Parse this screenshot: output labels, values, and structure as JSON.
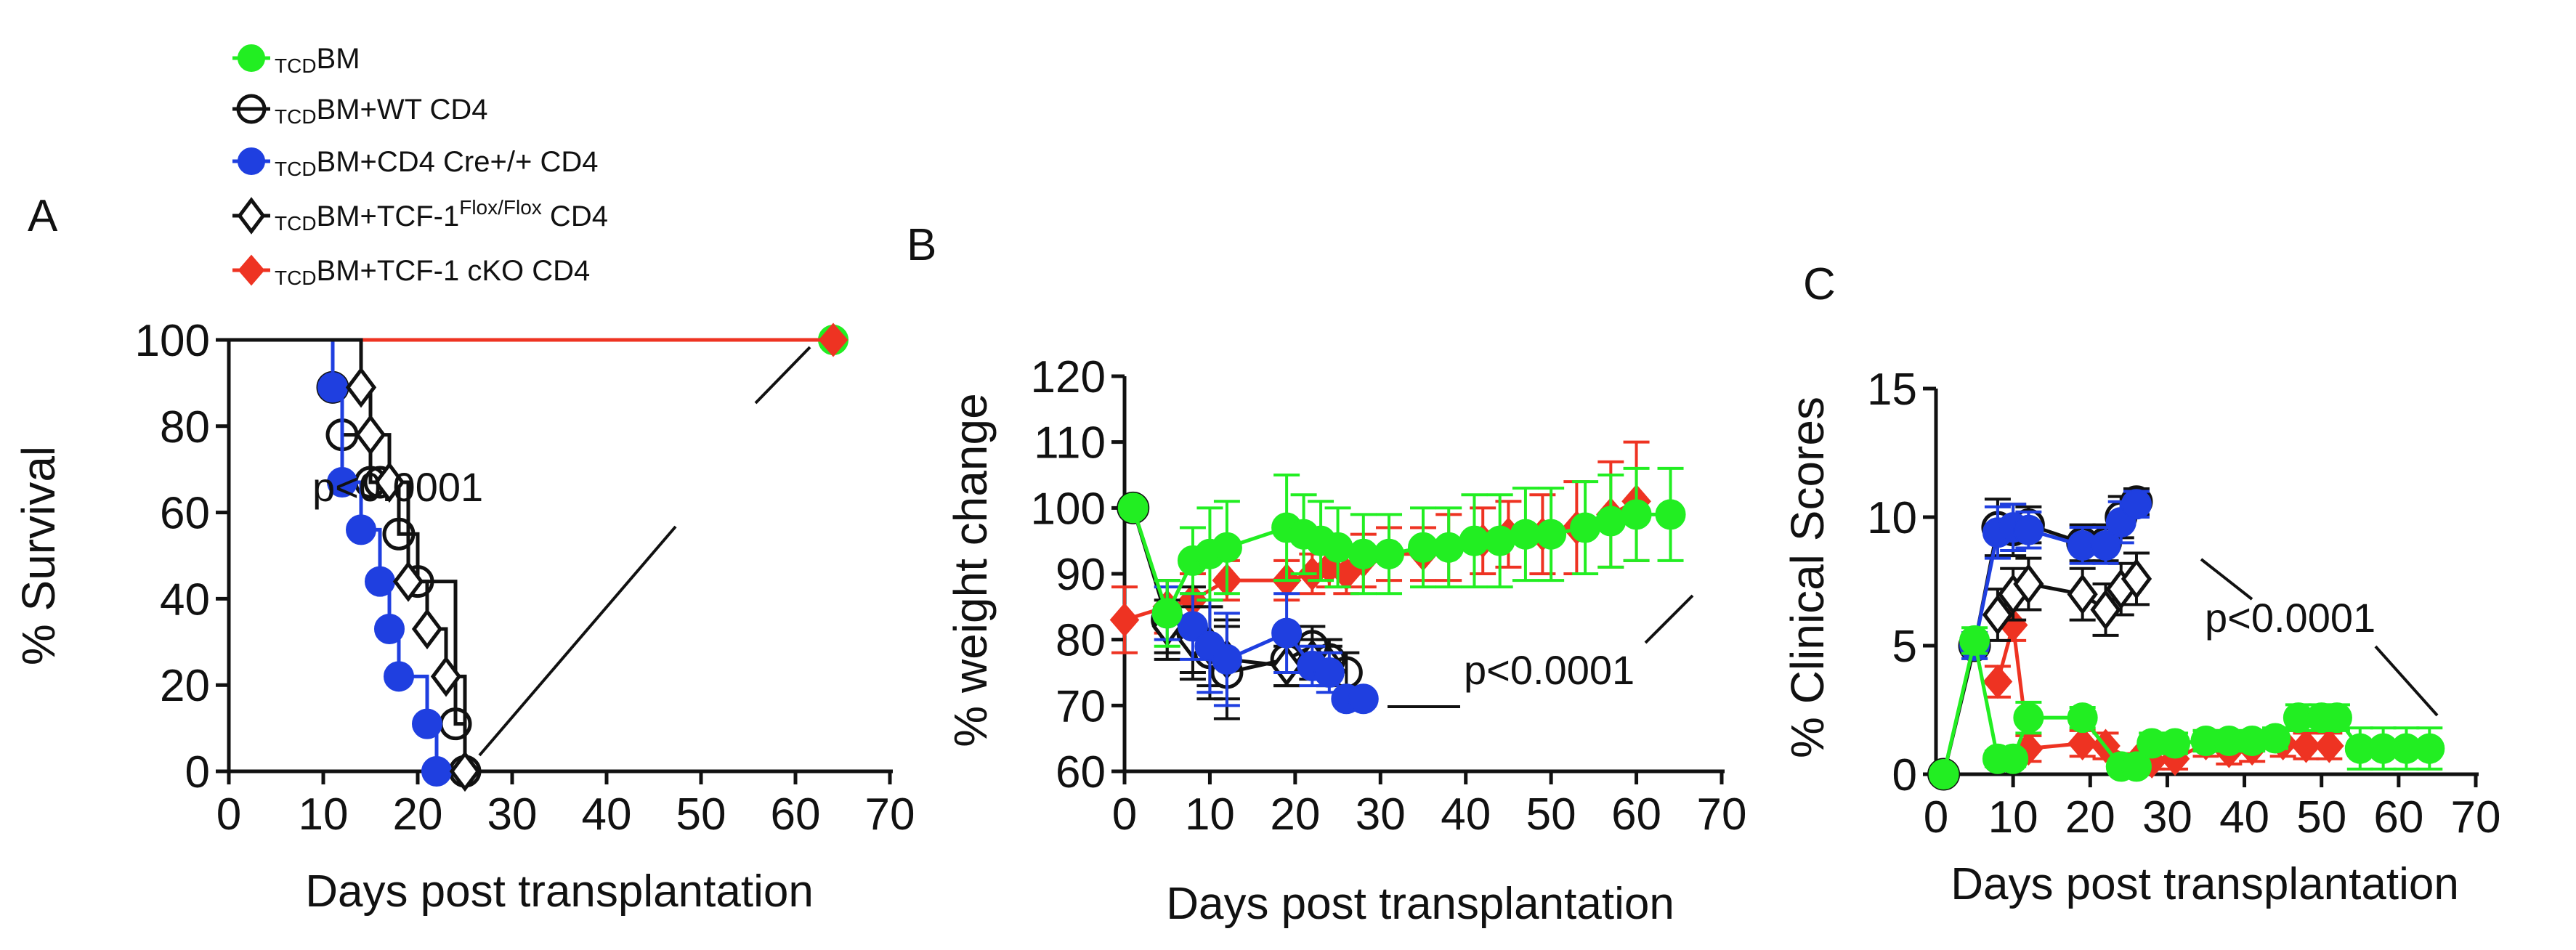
{
  "legend": {
    "items": [
      {
        "key": "tcd",
        "sub": "TCD",
        "label": "BM",
        "sup": "",
        "tail": ""
      },
      {
        "key": "wt",
        "sub": "TCD",
        "label": "BM+WT CD4",
        "sup": "",
        "tail": ""
      },
      {
        "key": "cre",
        "sub": "TCD",
        "label": "BM+CD4 Cre+/+ CD4",
        "sup": "",
        "tail": ""
      },
      {
        "key": "flox",
        "sub": "TCD",
        "label": "BM+TCF-1",
        "sup": "Flox/Flox",
        "tail": " CD4"
      },
      {
        "key": "cko",
        "sub": "TCD",
        "label": "BM+TCF-1 cKO CD4",
        "sup": "",
        "tail": ""
      }
    ]
  },
  "colors": {
    "tcd": "#22ee22",
    "wt": "#111111",
    "cre": "#1f3fe0",
    "flox": "#111111",
    "cko": "#ee3322"
  },
  "chart_data": [
    {
      "panel": "A",
      "type": "line",
      "ylabel": "% Survival",
      "xlabel": "Days post transplantation",
      "xlim": [
        0,
        70
      ],
      "ylim": [
        0,
        100
      ],
      "xticks": [
        0,
        10,
        20,
        30,
        40,
        50,
        60,
        70
      ],
      "yticks": [
        0,
        20,
        40,
        60,
        80,
        100
      ],
      "annotation": "p<0.0001",
      "series": [
        {
          "key": "tcd",
          "name": "TCD BM",
          "step": true,
          "x": [
            0,
            64
          ],
          "y": [
            100,
            100
          ]
        },
        {
          "key": "cko",
          "name": "TCD BM+TCF-1 cKO CD4",
          "step": true,
          "x": [
            0,
            64
          ],
          "y": [
            100,
            100
          ]
        },
        {
          "key": "wt",
          "name": "TCD BM+WT CD4",
          "step": true,
          "x": [
            0,
            11,
            12,
            15,
            16,
            18,
            20,
            24,
            25
          ],
          "y": [
            100,
            89,
            78,
            67,
            67,
            55,
            44,
            11,
            0
          ]
        },
        {
          "key": "cre",
          "name": "TCD BM+CD4 Cre+/+ CD4",
          "step": true,
          "x": [
            0,
            11,
            12,
            14,
            16,
            17,
            18,
            21,
            22
          ],
          "y": [
            100,
            89,
            67,
            56,
            44,
            33,
            22,
            11,
            0
          ]
        },
        {
          "key": "flox",
          "name": "TCD BM+TCF-1 Flox/Flox CD4",
          "step": true,
          "x": [
            0,
            14,
            15,
            17,
            19,
            21,
            23,
            25
          ],
          "y": [
            100,
            89,
            78,
            67,
            44,
            33,
            22,
            0
          ]
        }
      ]
    },
    {
      "panel": "B",
      "type": "line",
      "ylabel": "% weight change",
      "xlabel": "Days post transplantation",
      "xlim": [
        0,
        70
      ],
      "ylim": [
        60,
        120
      ],
      "xticks": [
        0,
        10,
        20,
        30,
        40,
        50,
        60,
        70
      ],
      "yticks": [
        60,
        70,
        80,
        90,
        100,
        110,
        120
      ],
      "annotation": "p<0.0001",
      "series": [
        {
          "key": "cko",
          "name": "TCD BM+TCF-1 cKO CD4",
          "x": [
            0,
            5,
            8,
            12,
            19,
            22,
            24,
            26,
            28,
            31,
            35,
            38,
            42,
            45,
            49,
            53,
            57,
            60
          ],
          "y": [
            83,
            85,
            86,
            89,
            89,
            90,
            91,
            90,
            92,
            93,
            93,
            94,
            95,
            96,
            96,
            97,
            99,
            101
          ],
          "err": [
            5,
            4,
            4,
            3,
            3,
            3,
            3,
            3,
            4,
            4,
            4,
            5,
            5,
            5,
            6,
            7,
            8,
            9
          ]
        },
        {
          "key": "wt",
          "name": "TCD BM+WT CD4",
          "x": [
            1,
            5,
            8,
            10,
            12,
            19,
            22,
            24,
            26
          ],
          "y": [
            100,
            83,
            81,
            78,
            75,
            77,
            79,
            77,
            75
          ],
          "err": [
            0,
            6,
            7,
            7,
            7,
            4,
            3,
            3,
            3
          ]
        },
        {
          "key": "flox",
          "name": "TCD BM+TCF-1 Flox/Flox CD4",
          "x": [
            5,
            8,
            10,
            12,
            19,
            22,
            24
          ],
          "y": [
            82,
            80,
            79,
            77,
            76,
            77,
            76
          ],
          "err": [
            4,
            5,
            6,
            6,
            3,
            3,
            3
          ]
        },
        {
          "key": "cre",
          "name": "TCD BM+CD4 Cre+/+ CD4",
          "x": [
            5,
            8,
            10,
            12,
            19,
            22,
            24,
            26,
            28
          ],
          "y": [
            84,
            82,
            79,
            77,
            81,
            76,
            75,
            71,
            71
          ],
          "err": [
            4,
            5,
            7,
            7,
            6,
            3,
            3,
            1,
            1
          ]
        },
        {
          "key": "tcd",
          "name": "TCD BM",
          "x": [
            1,
            5,
            8,
            10,
            12,
            19,
            21,
            23,
            25,
            28,
            31,
            35,
            38,
            41,
            44,
            47,
            50,
            54,
            57,
            60,
            64
          ],
          "y": [
            100,
            84,
            92,
            93,
            94,
            97,
            96,
            95,
            94,
            93,
            93,
            94,
            94,
            95,
            95,
            96,
            96,
            97,
            98,
            99,
            99
          ],
          "err": [
            0,
            5,
            5,
            7,
            7,
            8,
            6,
            6,
            6,
            6,
            6,
            6,
            6,
            7,
            7,
            7,
            7,
            7,
            7,
            7,
            7
          ]
        }
      ]
    },
    {
      "panel": "C",
      "type": "line",
      "ylabel": "% Clinical Scores",
      "xlabel": "Days post transplantation",
      "xlim": [
        0,
        70
      ],
      "ylim": [
        0,
        15
      ],
      "xticks": [
        0,
        10,
        20,
        30,
        40,
        50,
        60,
        70
      ],
      "yticks": [
        0,
        5,
        10,
        15
      ],
      "annotation": "p<0.0001",
      "series": [
        {
          "key": "cko",
          "name": "TCD BM+TCF-1 cKO CD4",
          "x": [
            8,
            10,
            12,
            19,
            22,
            26,
            28,
            31,
            35,
            38,
            41,
            45,
            48,
            51
          ],
          "y": [
            3.6,
            5.8,
            1.0,
            1.2,
            1.1,
            0.5,
            0.5,
            0.6,
            1.2,
            0.9,
            1.0,
            1.2,
            1.1,
            1.1
          ],
          "err": [
            0.6,
            0.6,
            0.5,
            0.5,
            0.5,
            0.3,
            0.3,
            0.4,
            0.5,
            0.5,
            0.5,
            0.5,
            0.5,
            0.5
          ]
        },
        {
          "key": "flox",
          "name": "TCD BM+TCF-1 Flox/Flox CD4",
          "x": [
            8,
            10,
            12,
            19,
            22,
            24,
            26
          ],
          "y": [
            6.2,
            7.0,
            7.4,
            7.0,
            6.4,
            7.2,
            7.6
          ],
          "err": [
            1.0,
            1.0,
            1.0,
            1.0,
            1.0,
            1.0,
            1.0
          ]
        },
        {
          "key": "wt",
          "name": "TCD BM+WT CD4",
          "x": [
            1,
            5,
            8,
            10,
            12,
            19,
            22,
            24,
            26
          ],
          "y": [
            0,
            5.0,
            9.6,
            9.5,
            9.7,
            9.0,
            9.0,
            10.0,
            10.6
          ],
          "err": [
            0,
            0.5,
            1.1,
            1.0,
            0.7,
            0.7,
            0.7,
            0.8,
            0.5
          ]
        },
        {
          "key": "cre",
          "name": "TCD BM+CD4 Cre+/+ CD4",
          "x": [
            5,
            8,
            10,
            12,
            19,
            22,
            24,
            26
          ],
          "y": [
            5.0,
            9.4,
            9.6,
            9.5,
            8.9,
            8.9,
            9.8,
            10.5
          ],
          "err": [
            0.5,
            1.0,
            0.9,
            0.7,
            0.7,
            0.7,
            0.8,
            0.5
          ]
        },
        {
          "key": "tcd",
          "name": "TCD BM",
          "x": [
            1,
            5,
            8,
            10,
            12,
            19,
            24,
            26,
            28,
            31,
            35,
            38,
            41,
            44,
            47,
            50,
            52,
            55,
            58,
            61,
            64
          ],
          "y": [
            0,
            5.2,
            0.6,
            0.6,
            2.2,
            2.2,
            0.3,
            0.3,
            1.2,
            1.2,
            1.3,
            1.3,
            1.3,
            1.4,
            2.2,
            2.2,
            2.2,
            1.0,
            1.0,
            1.0,
            1.0
          ],
          "err": [
            0,
            0.5,
            0.3,
            0.3,
            0.6,
            0.4,
            0.2,
            0.2,
            0.4,
            0.4,
            0.4,
            0.4,
            0.4,
            0.4,
            0.5,
            0.5,
            0.5,
            0.8,
            0.8,
            0.8,
            0.8
          ]
        }
      ]
    }
  ]
}
